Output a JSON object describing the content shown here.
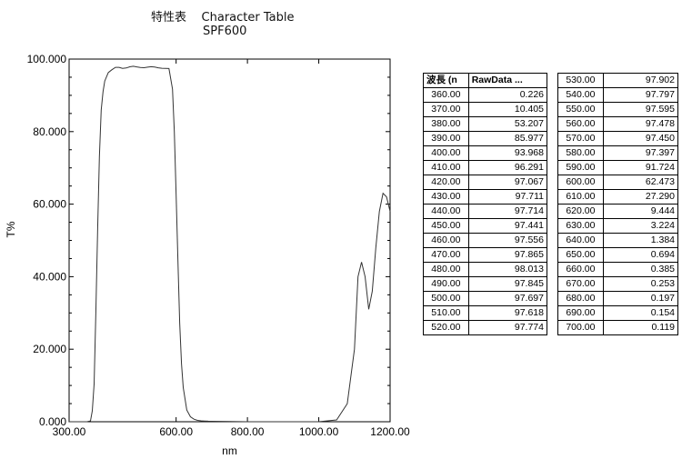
{
  "chart_data": {
    "type": "line",
    "title_jp": "特性表",
    "title_en": "Character Table",
    "subtitle": "SPF600",
    "xlabel": "nm",
    "ylabel": "T%",
    "xlim": [
      300,
      1200
    ],
    "ylim": [
      0,
      100
    ],
    "x_ticks": [
      "300.00",
      "600.00",
      "800.00",
      "1000.00",
      "1200.00"
    ],
    "x_tick_values": [
      300,
      600,
      800,
      1000,
      1200
    ],
    "y_ticks": [
      "0.000",
      "20.000",
      "40.000",
      "60.000",
      "80.000",
      "100.000"
    ],
    "y_tick_values": [
      0,
      20,
      40,
      60,
      80,
      100
    ],
    "grid": false,
    "series": [
      {
        "x": [
          300,
          350,
          360,
          365,
          370,
          375,
          380,
          385,
          390,
          395,
          400,
          410,
          420,
          430,
          440,
          450,
          460,
          470,
          480,
          490,
          500,
          510,
          520,
          530,
          540,
          550,
          560,
          570,
          580,
          590,
          595,
          600,
          605,
          610,
          615,
          620,
          630,
          640,
          650,
          660,
          670,
          680,
          690,
          700,
          800,
          900,
          1000,
          1050,
          1080,
          1100,
          1110,
          1120,
          1130,
          1140,
          1150,
          1160,
          1170,
          1180,
          1190,
          1200
        ],
        "y": [
          0,
          0,
          0.226,
          3,
          10.405,
          30,
          53.207,
          73,
          85.977,
          91,
          93.968,
          96.291,
          97.067,
          97.711,
          97.714,
          97.441,
          97.556,
          97.865,
          98.013,
          97.845,
          97.697,
          97.618,
          97.774,
          97.902,
          97.797,
          97.595,
          97.478,
          97.45,
          97.397,
          91.724,
          80,
          62.473,
          45,
          27.29,
          16,
          9.444,
          3.224,
          1.384,
          0.694,
          0.385,
          0.253,
          0.197,
          0.154,
          0.119,
          0,
          0,
          0,
          0.5,
          5,
          20,
          40,
          44,
          40,
          31,
          36,
          48,
          58,
          63,
          62,
          58
        ]
      }
    ]
  },
  "table": {
    "headers": [
      "波長 (n",
      "RawData ..."
    ],
    "left_rows": [
      [
        "360.00",
        "0.226"
      ],
      [
        "370.00",
        "10.405"
      ],
      [
        "380.00",
        "53.207"
      ],
      [
        "390.00",
        "85.977"
      ],
      [
        "400.00",
        "93.968"
      ],
      [
        "410.00",
        "96.291"
      ],
      [
        "420.00",
        "97.067"
      ],
      [
        "430.00",
        "97.711"
      ],
      [
        "440.00",
        "97.714"
      ],
      [
        "450.00",
        "97.441"
      ],
      [
        "460.00",
        "97.556"
      ],
      [
        "470.00",
        "97.865"
      ],
      [
        "480.00",
        "98.013"
      ],
      [
        "490.00",
        "97.845"
      ],
      [
        "500.00",
        "97.697"
      ],
      [
        "510.00",
        "97.618"
      ],
      [
        "520.00",
        "97.774"
      ]
    ],
    "right_rows": [
      [
        "530.00",
        "97.902"
      ],
      [
        "540.00",
        "97.797"
      ],
      [
        "550.00",
        "97.595"
      ],
      [
        "560.00",
        "97.478"
      ],
      [
        "570.00",
        "97.450"
      ],
      [
        "580.00",
        "97.397"
      ],
      [
        "590.00",
        "91.724"
      ],
      [
        "600.00",
        "62.473"
      ],
      [
        "610.00",
        "27.290"
      ],
      [
        "620.00",
        "9.444"
      ],
      [
        "630.00",
        "3.224"
      ],
      [
        "640.00",
        "1.384"
      ],
      [
        "650.00",
        "0.694"
      ],
      [
        "660.00",
        "0.385"
      ],
      [
        "670.00",
        "0.253"
      ],
      [
        "680.00",
        "0.197"
      ],
      [
        "690.00",
        "0.154"
      ],
      [
        "700.00",
        "0.119"
      ]
    ]
  }
}
